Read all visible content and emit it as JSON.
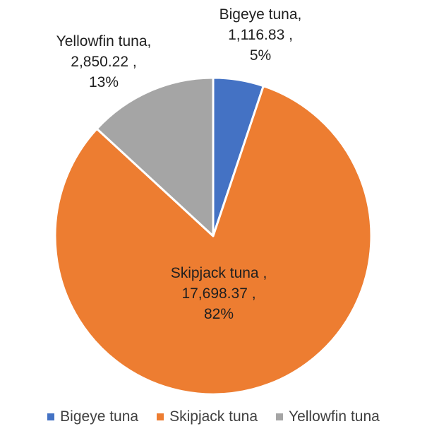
{
  "colors": {
    "bigeye": "#4472C4",
    "skipjack": "#ED7D31",
    "yellowfin": "#A5A5A5"
  },
  "chart_data": {
    "type": "pie",
    "title": "",
    "categories": [
      "Bigeye tuna",
      "Skipjack tuna",
      "Yellowfin tuna"
    ],
    "values": [
      1116.83,
      17698.37,
      2850.22
    ],
    "percents": [
      "5%",
      "82%",
      "13%"
    ],
    "data_labels": [
      {
        "name": "Bigeye tuna,",
        "value": "1,116.83 ,",
        "percent": "5%"
      },
      {
        "name": "Skipjack tuna ,",
        "value": "17,698.37 ,",
        "percent": "82%"
      },
      {
        "name": "Yellowfin tuna,",
        "value": "2,850.22 ,",
        "percent": "13%"
      }
    ],
    "legend": {
      "position": "bottom",
      "items": [
        "Bigeye tuna",
        "Skipjack tuna",
        "Yellowfin tuna"
      ]
    }
  }
}
